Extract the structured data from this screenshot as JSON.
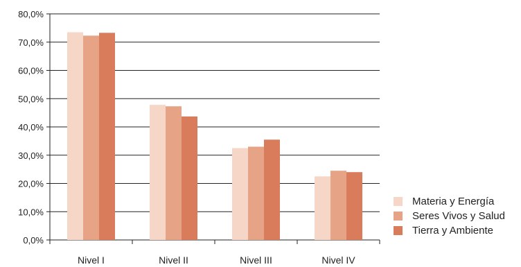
{
  "chart_data": {
    "type": "bar",
    "categories": [
      "Nivel I",
      "Nivel II",
      "Nivel III",
      "Nivel IV"
    ],
    "series": [
      {
        "name": "Materia y Energía",
        "color": "#f6d6c6",
        "values": [
          73.5,
          47.8,
          32.5,
          22.5
        ]
      },
      {
        "name": "Seres Vivos y Salud",
        "color": "#e6a385",
        "values": [
          72.3,
          47.3,
          33.0,
          24.5
        ]
      },
      {
        "name": "Tierra y Ambiente",
        "color": "#d97c5c",
        "values": [
          73.3,
          43.7,
          35.5,
          24.0
        ]
      }
    ],
    "ylim": [
      0,
      80
    ],
    "yticks": [
      "0,0%",
      "10,0%",
      "20,0%",
      "30,0%",
      "40,0%",
      "50,0%",
      "60,0%",
      "70,0%",
      "80,0%"
    ],
    "grid": true,
    "legend": "bottom-right",
    "title": "",
    "xlabel": "",
    "ylabel": ""
  }
}
